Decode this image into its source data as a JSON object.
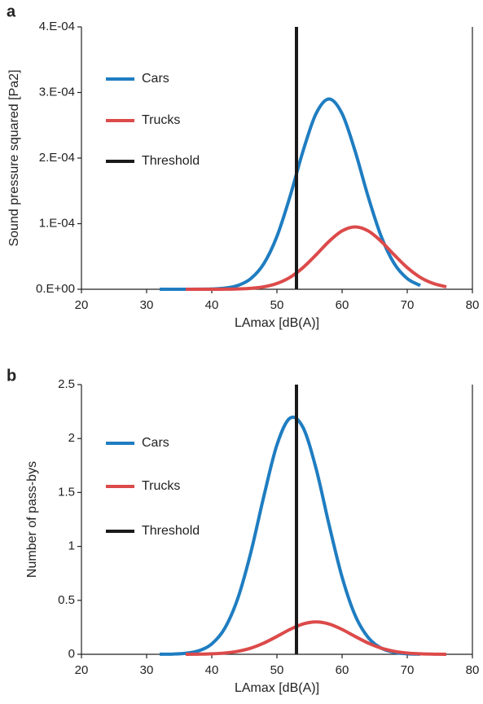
{
  "chart_data": [
    {
      "type": "line",
      "panel_label": "a",
      "x_label": "LAmax [dB(A)]",
      "y_label": "Sound pressure squared [Pa2]",
      "x": [
        32,
        34,
        36,
        38,
        40,
        42,
        44,
        46,
        48,
        50,
        52,
        54,
        56,
        58,
        60,
        62,
        64,
        66,
        68,
        70,
        72,
        74,
        76
      ],
      "series": [
        {
          "name": "Cars",
          "color": "#1f7dc1",
          "values": [
            0,
            0,
            0,
            1e-07,
            4e-07,
            1.7e-06,
            5.7e-06,
            1.63e-05,
            3.92e-05,
            8.06e-05,
            0.0001412,
            0.0002105,
            0.0002677,
            0.00029,
            0.0002677,
            0.0002105,
            0.0001412,
            8.06e-05,
            3.92e-05,
            1.63e-05,
            5.7e-06,
            null,
            null
          ]
        },
        {
          "name": "Trucks",
          "color": "#dc4a4a",
          "values": [
            null,
            null,
            0,
            0,
            0,
            1e-07,
            5e-07,
            1.4e-06,
            3.7e-06,
            8.8e-06,
            1.81e-05,
            3.3e-05,
            5.24e-05,
            7.3e-05,
            8.89e-05,
            9.5e-05,
            8.89e-05,
            7.3e-05,
            5.24e-05,
            3.3e-05,
            1.81e-05,
            8.8e-06,
            3.7e-06
          ]
        }
      ],
      "threshold": {
        "name": "Threshold",
        "color": "#1a1a1a",
        "value": 53
      },
      "xlim": [
        20,
        80
      ],
      "xticks": [
        20,
        30,
        40,
        50,
        60,
        70,
        80
      ],
      "ylim": [
        0,
        0.0004
      ],
      "yticks": [
        {
          "value": 0,
          "label": "0.E+00"
        },
        {
          "value": 0.0001,
          "label": "1.E-04"
        },
        {
          "value": 0.0002,
          "label": "2.E-04"
        },
        {
          "value": 0.0003,
          "label": "3.E-04"
        },
        {
          "value": 0.0004,
          "label": "4.E-04"
        }
      ]
    },
    {
      "type": "line",
      "panel_label": "b",
      "x_label": "LAmax [dB(A)]",
      "y_label": "Number of pass-bys",
      "x": [
        32,
        34,
        36,
        38,
        40,
        42,
        44,
        46,
        48,
        50,
        52,
        54,
        56,
        58,
        60,
        62,
        64,
        66,
        68,
        70,
        72,
        74,
        76
      ],
      "series": [
        {
          "name": "Cars",
          "color": "#1f7dc1",
          "values": [
            0.0005,
            0.0023,
            0.0095,
            0.0328,
            0.0966,
            0.242,
            0.519,
            0.945,
            1.467,
            1.941,
            2.189,
            2.103,
            1.723,
            1.201,
            0.715,
            0.361,
            0.156,
            0.0574,
            0.018,
            0.0048,
            0.0011,
            null,
            null
          ]
        },
        {
          "name": "Trucks",
          "color": "#dc4a4a",
          "values": [
            null,
            null,
            0.0004,
            0.0014,
            0.0044,
            0.0118,
            0.0278,
            0.0573,
            0.1041,
            0.1656,
            0.2304,
            0.2808,
            0.3,
            0.2808,
            0.2304,
            0.1656,
            0.1041,
            0.0573,
            0.0278,
            0.0118,
            0.0044,
            0.0014,
            0.0004
          ]
        }
      ],
      "threshold": {
        "name": "Threshold",
        "color": "#1a1a1a",
        "value": 53
      },
      "xlim": [
        20,
        80
      ],
      "xticks": [
        20,
        30,
        40,
        50,
        60,
        70,
        80
      ],
      "ylim": [
        0,
        2.5
      ],
      "yticks": [
        0,
        0.5,
        1,
        1.5,
        2,
        2.5
      ]
    }
  ]
}
